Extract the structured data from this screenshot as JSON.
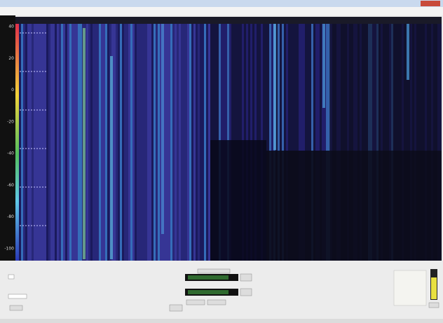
{
  "scale": {
    "labels": [
      "40",
      "20",
      "0",
      "-20",
      "-40",
      "-60",
      "-80",
      "-100"
    ]
  }
}
